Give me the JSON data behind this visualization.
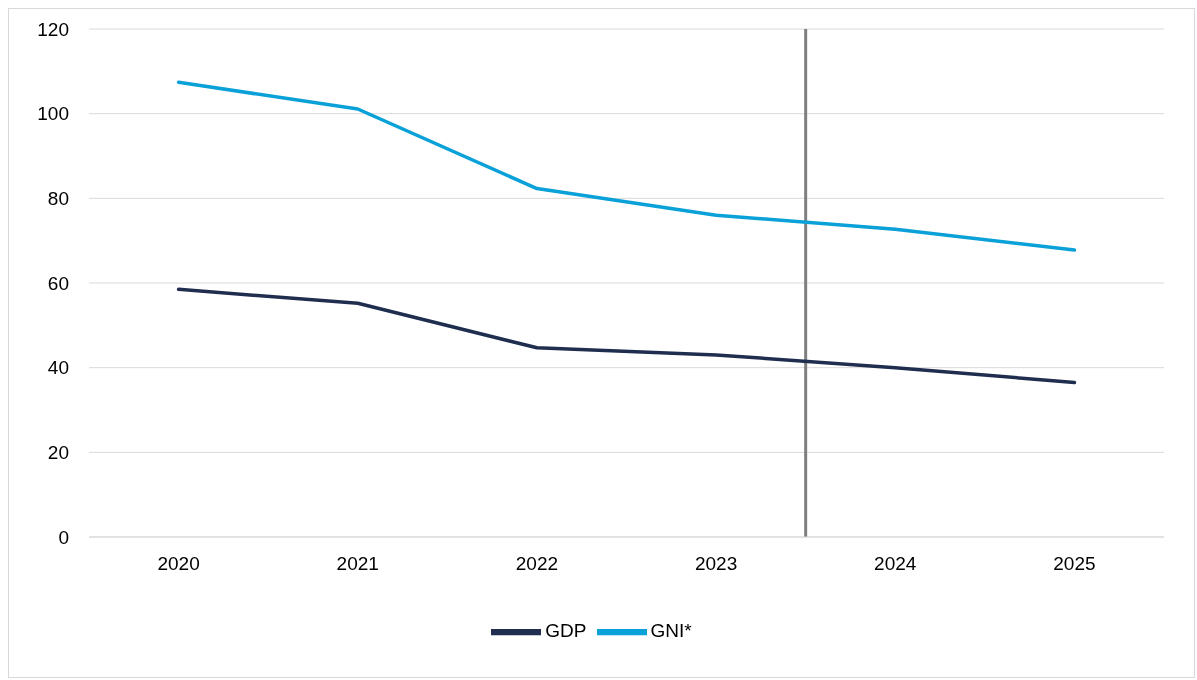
{
  "chart_data": {
    "type": "line",
    "x": [
      2020,
      2021,
      2022,
      2023,
      2024,
      2025
    ],
    "xlim": [
      2019.5,
      2025.5
    ],
    "xticks": [
      2020,
      2021,
      2022,
      2023,
      2024,
      2025
    ],
    "ylim": [
      0,
      120
    ],
    "yticks": [
      0,
      20,
      40,
      60,
      80,
      100,
      120
    ],
    "grid": "y",
    "legend": "bottom",
    "marker": "none",
    "line_style": "solid",
    "series": [
      {
        "name": "GDP",
        "color": "#1f2e4f",
        "values": [
          58.5,
          55.2,
          44.7,
          43.0,
          40.0,
          36.5
        ]
      },
      {
        "name": "GNI*",
        "color": "#0aa0d8",
        "values": [
          107.4,
          101.1,
          82.3,
          76.0,
          72.7,
          67.8
        ]
      }
    ],
    "ref_lines": [
      {
        "axis": "x",
        "value": 2023.5,
        "color": "#7f7f7f",
        "line_style": "solid"
      }
    ]
  }
}
